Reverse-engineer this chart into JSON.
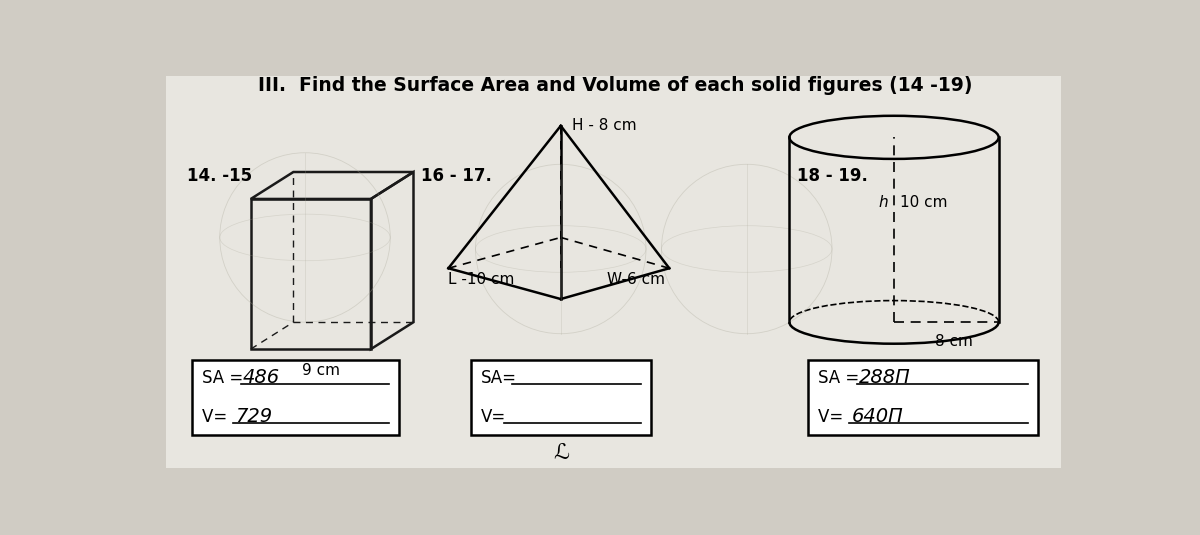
{
  "title": "III.  Find the Surface Area and Volume of each solid figures (14 -19)",
  "bg_color": "#c8c4bc",
  "text_color": "#000000",
  "section1_label": "14. -15",
  "section2_label": "16 - 17.",
  "section3_label": "18 - 19.",
  "cube_dim_label": "9 cm",
  "pyramid_h_label": "H - 8 cm",
  "pyramid_l_label": "L -10 cm",
  "pyramid_w_label": "W-6 cm",
  "cylinder_h_label": "10 cm",
  "cylinder_r_label": "8 cm",
  "cylinder_h_var": "h",
  "box1_sa_prefix": "SA = ",
  "box1_sa_val": "486",
  "box1_v_prefix": "V= ",
  "box1_v_val": "729",
  "box2_sa": "SA=",
  "box2_v": "V=",
  "box3_sa_prefix": "SA = ",
  "box3_sa_val": "288Π",
  "box3_v_prefix": "V= ",
  "box3_v_val": "640Π",
  "footnote": "ℒ"
}
